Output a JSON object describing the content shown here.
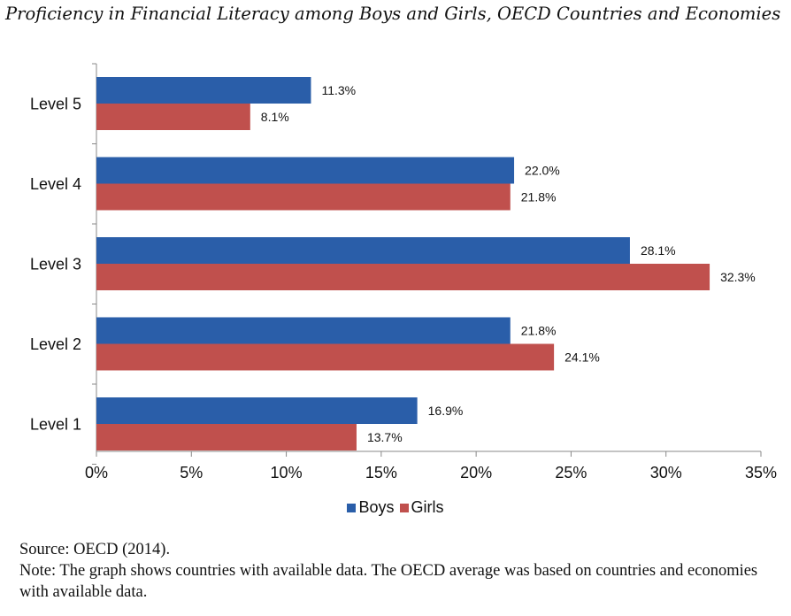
{
  "title": "Proficiency in Financial Literacy among Boys and Girls, OECD Countries and Economies",
  "chart_data": {
    "type": "bar",
    "orientation": "horizontal",
    "categories": [
      "Level 5",
      "Level 4",
      "Level 3",
      "Level 2",
      "Level 1"
    ],
    "series": [
      {
        "name": "Boys",
        "color": "#2a5ea9",
        "values": [
          11.3,
          22.0,
          28.1,
          21.8,
          16.9
        ],
        "labels": [
          "11.3%",
          "22.0%",
          "28.1%",
          "21.8%",
          "16.9%"
        ]
      },
      {
        "name": "Girls",
        "color": "#c0504d",
        "values": [
          8.1,
          21.8,
          32.3,
          24.1,
          13.7
        ],
        "labels": [
          "8.1%",
          "21.8%",
          "32.3%",
          "24.1%",
          "13.7%"
        ]
      }
    ],
    "xlim": [
      0,
      35
    ],
    "xticks": [
      0,
      5,
      10,
      15,
      20,
      25,
      30,
      35
    ],
    "xtick_labels": [
      "0%",
      "5%",
      "10%",
      "15%",
      "20%",
      "25%",
      "30%",
      "35%"
    ],
    "grid": false,
    "legend_position": "bottom"
  },
  "notes": {
    "source": "Source: OECD (2014).",
    "note": "Note: The graph shows countries with available data. The OECD average was based on countries and economies with available data."
  }
}
